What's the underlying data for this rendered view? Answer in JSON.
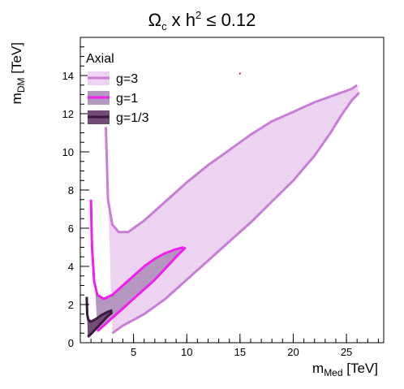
{
  "chart_data": {
    "type": "area",
    "title": {
      "main": "Ω",
      "main_sub": "c",
      "mid": " x h",
      "mid_sup": "2",
      "tail": " ≤ 0.12"
    },
    "xlabel": {
      "main": "m",
      "sub": "Med",
      "unit": " [TeV]"
    },
    "ylabel": {
      "main": "m",
      "sub": "DM",
      "unit": " [TeV]"
    },
    "xlim": [
      0,
      28.5
    ],
    "ylim": [
      0,
      16
    ],
    "x_ticks": [
      5,
      10,
      15,
      20,
      25
    ],
    "y_ticks": [
      0,
      2,
      4,
      6,
      8,
      10,
      12,
      14
    ],
    "grid": false,
    "legend": {
      "title": "Axial",
      "position": "top-left",
      "entries": [
        "g=3",
        "g=1",
        "g=1/3"
      ]
    },
    "series": [
      {
        "name": "g=3",
        "color": "#c87dd6",
        "fill": "#efd9f3",
        "upper": [
          [
            2.4,
            11.3
          ],
          [
            2.6,
            7.5
          ],
          [
            3.0,
            6.2
          ],
          [
            3.6,
            5.8
          ],
          [
            4.5,
            5.8
          ],
          [
            6.0,
            6.4
          ],
          [
            8.0,
            7.4
          ],
          [
            10.0,
            8.4
          ],
          [
            12.0,
            9.3
          ],
          [
            14.0,
            10.1
          ],
          [
            16.0,
            10.9
          ],
          [
            18.0,
            11.6
          ],
          [
            20.0,
            12.1
          ],
          [
            22.0,
            12.6
          ],
          [
            24.0,
            13.0
          ],
          [
            25.5,
            13.3
          ],
          [
            26.0,
            13.5
          ]
        ],
        "lower": [
          [
            3.0,
            0.5
          ],
          [
            4.0,
            0.9
          ],
          [
            6.0,
            1.5
          ],
          [
            8.0,
            2.3
          ],
          [
            10.0,
            3.3
          ],
          [
            12.0,
            4.3
          ],
          [
            14.0,
            5.3
          ],
          [
            16.0,
            6.3
          ],
          [
            18.0,
            7.4
          ],
          [
            20.0,
            8.5
          ],
          [
            22.0,
            9.8
          ],
          [
            23.5,
            11.0
          ],
          [
            24.5,
            11.9
          ],
          [
            25.5,
            12.7
          ],
          [
            26.2,
            13.1
          ]
        ]
      },
      {
        "name": "g=1",
        "color": "#f01ff0",
        "fill": "#b0a0bc",
        "upper": [
          [
            1.0,
            7.5
          ],
          [
            1.1,
            5.0
          ],
          [
            1.3,
            3.2
          ],
          [
            1.6,
            2.5
          ],
          [
            2.2,
            2.3
          ],
          [
            3.0,
            2.5
          ],
          [
            4.0,
            3.0
          ],
          [
            5.0,
            3.5
          ],
          [
            6.0,
            4.0
          ],
          [
            7.0,
            4.4
          ],
          [
            8.0,
            4.7
          ],
          [
            9.0,
            4.9
          ],
          [
            9.7,
            5.0
          ]
        ],
        "lower": [
          [
            1.6,
            0.6
          ],
          [
            2.2,
            0.9
          ],
          [
            3.0,
            1.3
          ],
          [
            4.0,
            1.8
          ],
          [
            5.0,
            2.3
          ],
          [
            6.0,
            2.8
          ],
          [
            7.0,
            3.3
          ],
          [
            8.0,
            3.9
          ],
          [
            9.0,
            4.5
          ],
          [
            9.9,
            5.0
          ]
        ]
      },
      {
        "name": "g=1/3",
        "color": "#3d1a3d",
        "fill": "#74507a",
        "upper": [
          [
            0.6,
            2.4
          ],
          [
            0.65,
            1.5
          ],
          [
            0.75,
            1.2
          ],
          [
            1.0,
            1.1
          ],
          [
            1.5,
            1.25
          ],
          [
            2.0,
            1.45
          ],
          [
            2.5,
            1.6
          ],
          [
            3.0,
            1.7
          ]
        ],
        "lower": [
          [
            0.7,
            0.3
          ],
          [
            1.0,
            0.45
          ],
          [
            1.5,
            0.75
          ],
          [
            2.0,
            1.05
          ],
          [
            2.5,
            1.35
          ],
          [
            3.0,
            1.6
          ]
        ]
      }
    ],
    "annotations": [
      {
        "x": 15.0,
        "y": 14.1,
        "color": "#cc0000"
      }
    ]
  }
}
